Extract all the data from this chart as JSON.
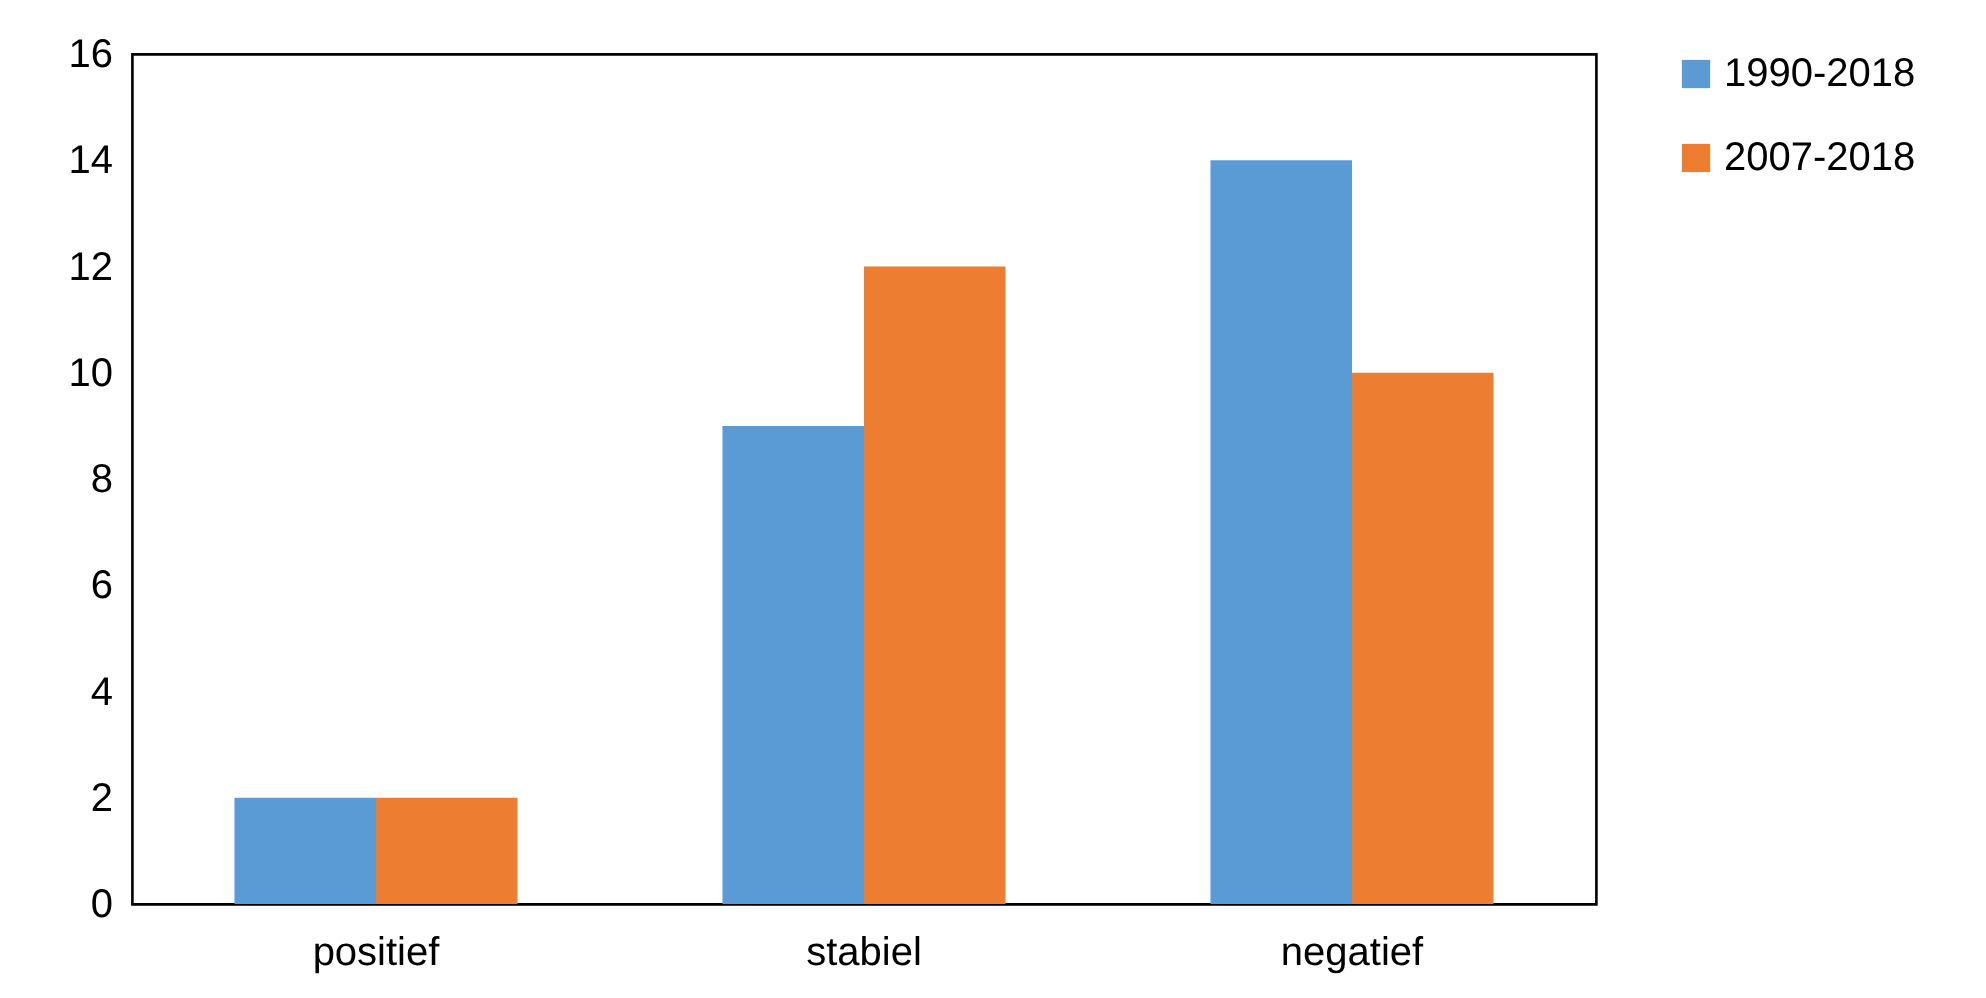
{
  "chart_data": {
    "type": "bar",
    "categories": [
      "positief",
      "stabiel",
      "negatief"
    ],
    "series": [
      {
        "name": "1990-2018",
        "color": "#5b9bd5",
        "values": [
          2,
          9,
          14
        ]
      },
      {
        "name": "2007-2018",
        "color": "#ed7d31",
        "values": [
          2,
          12,
          10
        ]
      }
    ],
    "ylim": [
      0,
      16
    ],
    "yticks": [
      0,
      2,
      4,
      6,
      8,
      10,
      12,
      14,
      16
    ],
    "grid": false,
    "legend": "right"
  }
}
